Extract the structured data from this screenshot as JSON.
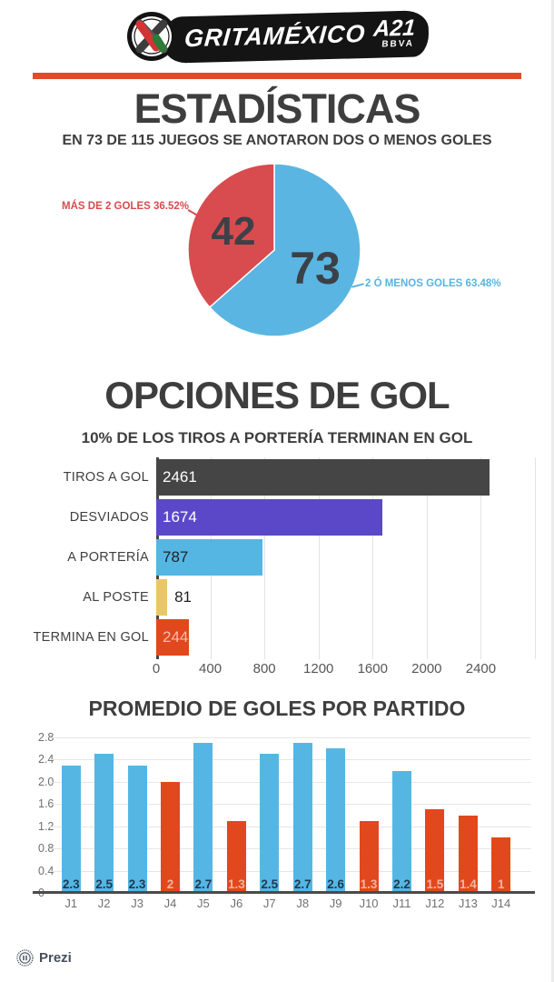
{
  "header": {
    "logo_text": "GRITAMÉXICO",
    "logo_edition": "A21",
    "logo_sub": "BBVA"
  },
  "sections": {
    "estadisticas": {
      "title": "ESTADÍSTICAS",
      "subtitle": "EN 73 DE 115 JUEGOS SE ANOTARON DOS O MENOS GOLES"
    },
    "opciones": {
      "title": "OPCIONES DE GOL",
      "subtitle": "10% DE LOS TIROS A PORTERÍA TERMINAN EN GOL"
    },
    "promedio": {
      "title": "PROMEDIO DE GOLES POR PARTIDO"
    }
  },
  "footer": {
    "brand": "Prezi"
  },
  "colors": {
    "accent_red_line": "#e24b27",
    "pie_blue": "#5ab5e2",
    "pie_red": "#d84b4e",
    "bar_dark": "#454545",
    "bar_purple": "#5b48c8",
    "bar_blue": "#55b6e3",
    "bar_yellow": "#eac766",
    "bar_orange": "#e2481d"
  },
  "chart_data": [
    {
      "type": "pie",
      "title": "EN 73 DE 115 JUEGOS SE ANOTARON DOS O MENOS GOLES",
      "start_angle": "top",
      "direction": "clockwise",
      "slices": [
        {
          "label": "2 Ó MENOS GOLES 63.48%",
          "value": 73,
          "pct": 63.48,
          "color": "#5ab5e2",
          "label_side": "right"
        },
        {
          "label": "MÁS DE 2 GOLES 36.52%",
          "value": 42,
          "pct": 36.52,
          "color": "#d84b4e",
          "label_side": "left"
        }
      ]
    },
    {
      "type": "bar",
      "orientation": "horizontal",
      "title": "OPCIONES DE GOL",
      "subtitle": "10% DE LOS TIROS A PORTERÍA TERMINAN EN GOL",
      "categories": [
        "TIROS A GOL",
        "DESVIADOS",
        "A PORTERÍA",
        "AL POSTE",
        "TERMINA EN GOL"
      ],
      "values": [
        2461,
        1674,
        787,
        81,
        244
      ],
      "colors": [
        "#454545",
        "#5b48c8",
        "#55b6e3",
        "#eac766",
        "#e2481d"
      ],
      "value_label_colors": [
        "#ffffff",
        "#ffffff",
        "#222222",
        "#222222",
        "#f6c0ae"
      ],
      "value_label_inside": [
        true,
        true,
        true,
        false,
        true
      ],
      "xlim": [
        0,
        2800
      ],
      "xticks": [
        0,
        400,
        800,
        1200,
        1600,
        2000,
        2400
      ],
      "grid": true,
      "legend": false
    },
    {
      "type": "bar",
      "orientation": "vertical",
      "title": "PROMEDIO DE GOLES POR PARTIDO",
      "categories": [
        "J1",
        "J2",
        "J3",
        "J4",
        "J5",
        "J6",
        "J7",
        "J8",
        "J9",
        "J10",
        "J11",
        "J12",
        "J13",
        "J14"
      ],
      "values": [
        2.3,
        2.5,
        2.3,
        2,
        2.7,
        1.3,
        2.5,
        2.7,
        2.6,
        1.3,
        2.2,
        1.5,
        1.4,
        1
      ],
      "bar_colors": [
        "blue",
        "blue",
        "blue",
        "orange",
        "blue",
        "orange",
        "blue",
        "blue",
        "blue",
        "orange",
        "blue",
        "orange",
        "orange",
        "orange"
      ],
      "palette": {
        "blue": "#55b6e3",
        "orange": "#e2481d"
      },
      "value_label_colors": {
        "blue": "#1d3a52",
        "orange": "#f3b5a2"
      },
      "ylim": [
        0,
        2.8
      ],
      "yticks": [
        "2.8",
        "2.4",
        "2.0",
        "1.6",
        "1.2",
        "0.8",
        "0.4",
        "0"
      ],
      "grid": true,
      "legend": false
    }
  ]
}
